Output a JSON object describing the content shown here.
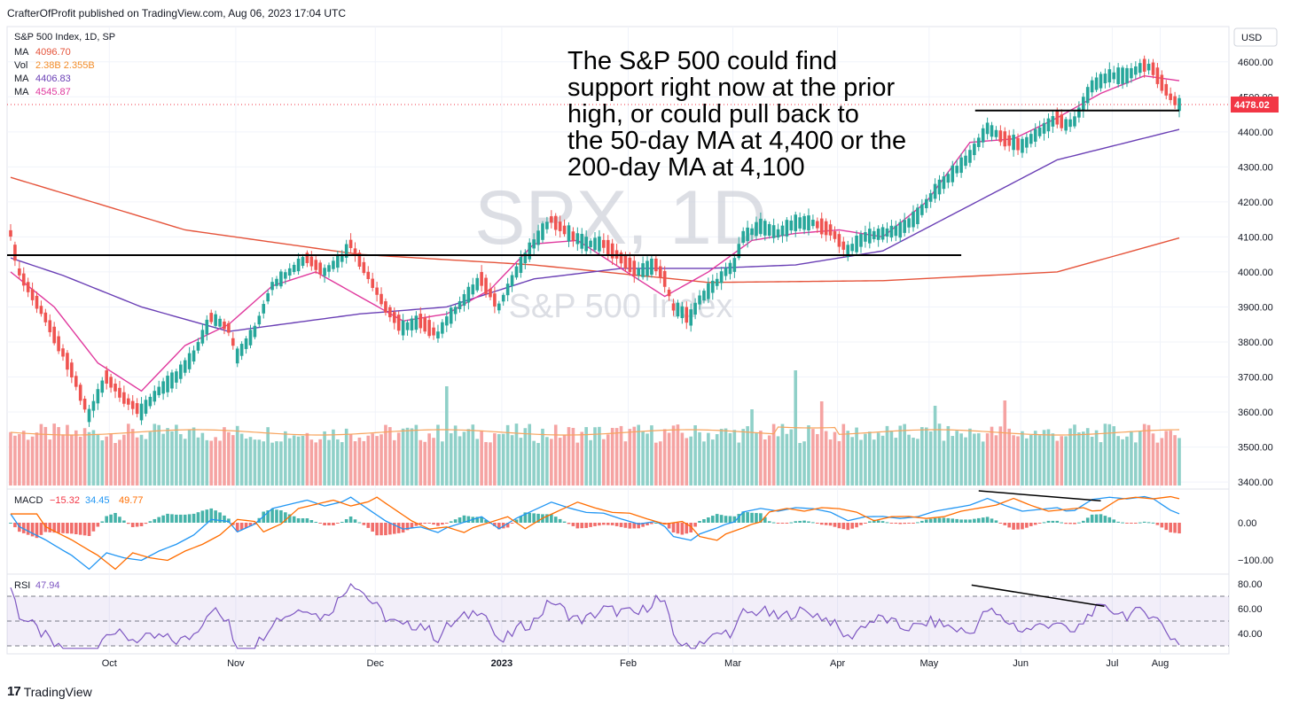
{
  "header": {
    "published_by": "CrafterOfProfit published on TradingView.com, Aug 06, 2023 17:04 UTC",
    "currency_button": "USD"
  },
  "legend": {
    "symbol": "S&P 500 Index, 1D, SP",
    "ma1_label": "MA",
    "ma1_value": "4096.70",
    "ma1_color": "#e5533a",
    "vol_label": "Vol",
    "vol_value1": "2.38B",
    "vol_value2": "2.355B",
    "vol_color": "#f28c28",
    "ma2_label": "MA",
    "ma2_value": "4406.83",
    "ma2_color": "#6a3fb5",
    "ma3_label": "MA",
    "ma3_value": "4545.87",
    "ma3_color": "#e0389d"
  },
  "watermark": {
    "main": "SPX, 1D",
    "sub": "S&P 500 Index"
  },
  "annotation": {
    "lines": [
      "The S&P 500 could find",
      "support right now at the prior",
      "high, or could pull back to",
      "the 50-day MA at 4,400 or the",
      "200-day MA at 4,100"
    ]
  },
  "price_tag": {
    "value": "4478.02",
    "color": "#f23645"
  },
  "macd": {
    "label": "MACD",
    "v1": "−15.32",
    "v2": "34.45",
    "v3": "49.77",
    "c1": "#f23645",
    "c2": "#2196f3",
    "c3": "#ff6d00"
  },
  "rsi": {
    "label": "RSI",
    "value": "47.94",
    "color": "#7e57c2"
  },
  "footer": {
    "brand": "TradingView",
    "logo_glyph": "17"
  },
  "colors": {
    "up": "#26a69a",
    "down": "#ef5350",
    "vol_up": "#8fd0c8",
    "vol_down": "#f5a3a2",
    "grid": "#f0f3fa"
  },
  "chart_data": {
    "type": "candlestick",
    "title": "S&P 500 Index, 1D, SP",
    "price_axis_ticks": [
      "4600.00",
      "4500.00",
      "4400.00",
      "4300.00",
      "4200.00",
      "4100.00",
      "4000.00",
      "3900.00",
      "3800.00",
      "3700.00",
      "3600.00",
      "3500.00",
      "3400.00"
    ],
    "macd_axis_ticks": [
      "0.00",
      "−100.00"
    ],
    "rsi_axis_ticks": [
      "80.00",
      "60.00",
      "40.00"
    ],
    "time_axis_labels": [
      "Oct",
      "Nov",
      "Dec",
      "2023",
      "Feb",
      "Mar",
      "Apr",
      "May",
      "Jun",
      "Jul",
      "Aug"
    ],
    "ylim": [
      3380,
      4650
    ],
    "price_path": [
      [
        0,
        4110
      ],
      [
        2,
        4000
      ],
      [
        8,
        3870
      ],
      [
        14,
        3720
      ],
      [
        18,
        3590
      ],
      [
        22,
        3700
      ],
      [
        26,
        3640
      ],
      [
        30,
        3600
      ],
      [
        34,
        3660
      ],
      [
        38,
        3700
      ],
      [
        42,
        3760
      ],
      [
        46,
        3870
      ],
      [
        50,
        3840
      ],
      [
        52,
        3760
      ],
      [
        56,
        3830
      ],
      [
        60,
        3960
      ],
      [
        64,
        4000
      ],
      [
        68,
        4040
      ],
      [
        72,
        4000
      ],
      [
        76,
        4040
      ],
      [
        78,
        4080
      ],
      [
        82,
        3990
      ],
      [
        86,
        3900
      ],
      [
        90,
        3840
      ],
      [
        94,
        3860
      ],
      [
        98,
        3820
      ],
      [
        100,
        3860
      ],
      [
        104,
        3920
      ],
      [
        108,
        3980
      ],
      [
        112,
        3900
      ],
      [
        116,
        4000
      ],
      [
        120,
        4080
      ],
      [
        124,
        4150
      ],
      [
        128,
        4110
      ],
      [
        132,
        4080
      ],
      [
        136,
        4080
      ],
      [
        140,
        4040
      ],
      [
        144,
        4000
      ],
      [
        148,
        4020
      ],
      [
        150,
        3980
      ],
      [
        152,
        3900
      ],
      [
        156,
        3870
      ],
      [
        158,
        3920
      ],
      [
        162,
        3970
      ],
      [
        164,
        4000
      ],
      [
        166,
        4020
      ],
      [
        168,
        4100
      ],
      [
        172,
        4130
      ],
      [
        176,
        4110
      ],
      [
        180,
        4140
      ],
      [
        184,
        4140
      ],
      [
        188,
        4120
      ],
      [
        192,
        4060
      ],
      [
        196,
        4100
      ],
      [
        200,
        4110
      ],
      [
        204,
        4120
      ],
      [
        208,
        4160
      ],
      [
        212,
        4230
      ],
      [
        216,
        4280
      ],
      [
        220,
        4330
      ],
      [
        224,
        4410
      ],
      [
        228,
        4380
      ],
      [
        232,
        4360
      ],
      [
        236,
        4400
      ],
      [
        240,
        4440
      ],
      [
        242,
        4420
      ],
      [
        244,
        4430
      ],
      [
        248,
        4530
      ],
      [
        252,
        4560
      ],
      [
        256,
        4560
      ],
      [
        260,
        4590
      ],
      [
        262,
        4580
      ],
      [
        266,
        4500
      ],
      [
        268,
        4478
      ]
    ],
    "ma200_path": [
      [
        0,
        4270
      ],
      [
        40,
        4120
      ],
      [
        80,
        4050
      ],
      [
        120,
        4020
      ],
      [
        160,
        3970
      ],
      [
        200,
        3975
      ],
      [
        240,
        4000
      ],
      [
        268,
        4097
      ]
    ],
    "ma50_path": [
      [
        0,
        4040
      ],
      [
        12,
        3990
      ],
      [
        30,
        3900
      ],
      [
        50,
        3830
      ],
      [
        80,
        3880
      ],
      [
        100,
        3900
      ],
      [
        120,
        3980
      ],
      [
        140,
        4010
      ],
      [
        160,
        4010
      ],
      [
        180,
        4020
      ],
      [
        200,
        4060
      ],
      [
        220,
        4190
      ],
      [
        240,
        4320
      ],
      [
        268,
        4407
      ]
    ],
    "ma20_path": [
      [
        0,
        4000
      ],
      [
        10,
        3900
      ],
      [
        20,
        3740
      ],
      [
        30,
        3660
      ],
      [
        40,
        3790
      ],
      [
        50,
        3850
      ],
      [
        60,
        3960
      ],
      [
        70,
        4000
      ],
      [
        80,
        3930
      ],
      [
        90,
        3860
      ],
      [
        100,
        3880
      ],
      [
        110,
        3950
      ],
      [
        120,
        4080
      ],
      [
        130,
        4090
      ],
      [
        140,
        4010
      ],
      [
        150,
        3930
      ],
      [
        160,
        4000
      ],
      [
        170,
        4090
      ],
      [
        180,
        4110
      ],
      [
        190,
        4120
      ],
      [
        200,
        4100
      ],
      [
        210,
        4200
      ],
      [
        220,
        4370
      ],
      [
        230,
        4380
      ],
      [
        240,
        4440
      ],
      [
        250,
        4510
      ],
      [
        260,
        4560
      ],
      [
        268,
        4546
      ]
    ],
    "horizontal_lines": [
      {
        "from": 0,
        "to": 218,
        "price": 4048
      },
      {
        "from": 222,
        "to": 268,
        "price": 4461
      }
    ],
    "macd_divergence": {
      "from": 222,
      "to": 250,
      "y1": 0.2,
      "y2": 0.44
    },
    "rsi_divergence": {
      "from": 222,
      "to": 250,
      "value1": 79,
      "value2": 62
    }
  }
}
